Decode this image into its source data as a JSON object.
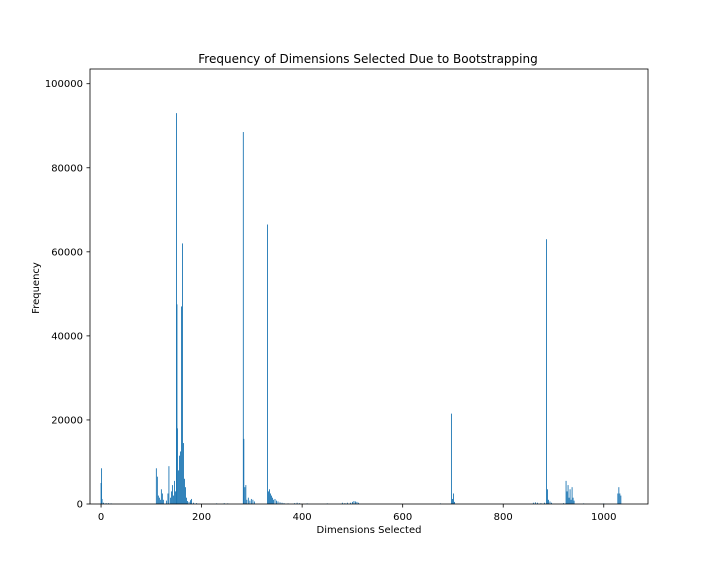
{
  "chart_data": {
    "type": "bar",
    "title": "Frequency of Dimensions Selected Due to Bootstrapping",
    "xlabel": "Dimensions Selected",
    "ylabel": "Frequency",
    "xlim": [
      -22,
      1088
    ],
    "ylim": [
      0,
      103500
    ],
    "xticks": [
      0,
      200,
      400,
      600,
      800,
      1000
    ],
    "yticks": [
      0,
      20000,
      40000,
      60000,
      80000,
      100000
    ],
    "grid": false,
    "legend": "none",
    "bar_color": "#1f77b4",
    "bars": [
      {
        "x": 0,
        "y": 5000
      },
      {
        "x": 1,
        "y": 8500
      },
      {
        "x": 2,
        "y": 1200
      },
      {
        "x": 5,
        "y": 300
      },
      {
        "x": 10,
        "y": 200
      },
      {
        "x": 15,
        "y": 200
      },
      {
        "x": 20,
        "y": 150
      },
      {
        "x": 110,
        "y": 8500
      },
      {
        "x": 112,
        "y": 6500
      },
      {
        "x": 114,
        "y": 2000
      },
      {
        "x": 116,
        "y": 1500
      },
      {
        "x": 118,
        "y": 1000
      },
      {
        "x": 120,
        "y": 3500
      },
      {
        "x": 122,
        "y": 2500
      },
      {
        "x": 124,
        "y": 1000
      },
      {
        "x": 130,
        "y": 800
      },
      {
        "x": 133,
        "y": 2500
      },
      {
        "x": 135,
        "y": 9000
      },
      {
        "x": 138,
        "y": 1500
      },
      {
        "x": 140,
        "y": 3000
      },
      {
        "x": 142,
        "y": 4500
      },
      {
        "x": 144,
        "y": 2000
      },
      {
        "x": 146,
        "y": 5500
      },
      {
        "x": 148,
        "y": 3000
      },
      {
        "x": 150,
        "y": 93000
      },
      {
        "x": 151,
        "y": 47500
      },
      {
        "x": 152,
        "y": 18000
      },
      {
        "x": 154,
        "y": 8000
      },
      {
        "x": 156,
        "y": 11500
      },
      {
        "x": 158,
        "y": 12500
      },
      {
        "x": 160,
        "y": 47000
      },
      {
        "x": 162,
        "y": 62000
      },
      {
        "x": 164,
        "y": 14500
      },
      {
        "x": 166,
        "y": 6000
      },
      {
        "x": 168,
        "y": 4000
      },
      {
        "x": 170,
        "y": 1500
      },
      {
        "x": 172,
        "y": 700
      },
      {
        "x": 175,
        "y": 500
      },
      {
        "x": 178,
        "y": 900
      },
      {
        "x": 180,
        "y": 1200
      },
      {
        "x": 184,
        "y": 300
      },
      {
        "x": 190,
        "y": 200
      },
      {
        "x": 230,
        "y": 150
      },
      {
        "x": 245,
        "y": 200
      },
      {
        "x": 252,
        "y": 150
      },
      {
        "x": 283,
        "y": 88500
      },
      {
        "x": 284,
        "y": 15500
      },
      {
        "x": 286,
        "y": 4000
      },
      {
        "x": 288,
        "y": 4500
      },
      {
        "x": 290,
        "y": 1000
      },
      {
        "x": 293,
        "y": 1500
      },
      {
        "x": 296,
        "y": 800
      },
      {
        "x": 299,
        "y": 1200
      },
      {
        "x": 302,
        "y": 1000
      },
      {
        "x": 305,
        "y": 600
      },
      {
        "x": 331,
        "y": 66500
      },
      {
        "x": 333,
        "y": 3000
      },
      {
        "x": 335,
        "y": 3500
      },
      {
        "x": 337,
        "y": 2500
      },
      {
        "x": 339,
        "y": 2000
      },
      {
        "x": 341,
        "y": 1500
      },
      {
        "x": 343,
        "y": 1000
      },
      {
        "x": 346,
        "y": 1200
      },
      {
        "x": 349,
        "y": 800
      },
      {
        "x": 352,
        "y": 600
      },
      {
        "x": 356,
        "y": 400
      },
      {
        "x": 360,
        "y": 300
      },
      {
        "x": 364,
        "y": 200
      },
      {
        "x": 372,
        "y": 150
      },
      {
        "x": 385,
        "y": 200
      },
      {
        "x": 390,
        "y": 300
      },
      {
        "x": 395,
        "y": 200
      },
      {
        "x": 410,
        "y": 150
      },
      {
        "x": 450,
        "y": 150
      },
      {
        "x": 480,
        "y": 300
      },
      {
        "x": 485,
        "y": 200
      },
      {
        "x": 490,
        "y": 300
      },
      {
        "x": 496,
        "y": 300
      },
      {
        "x": 500,
        "y": 500
      },
      {
        "x": 503,
        "y": 700
      },
      {
        "x": 506,
        "y": 600
      },
      {
        "x": 509,
        "y": 500
      },
      {
        "x": 512,
        "y": 300
      },
      {
        "x": 675,
        "y": 150
      },
      {
        "x": 697,
        "y": 21500
      },
      {
        "x": 699,
        "y": 1200
      },
      {
        "x": 701,
        "y": 2500
      },
      {
        "x": 703,
        "y": 500
      },
      {
        "x": 860,
        "y": 300
      },
      {
        "x": 864,
        "y": 400
      },
      {
        "x": 868,
        "y": 300
      },
      {
        "x": 875,
        "y": 200
      },
      {
        "x": 882,
        "y": 300
      },
      {
        "x": 886,
        "y": 63000
      },
      {
        "x": 888,
        "y": 3500
      },
      {
        "x": 890,
        "y": 1000
      },
      {
        "x": 893,
        "y": 600
      },
      {
        "x": 896,
        "y": 300
      },
      {
        "x": 920,
        "y": 200
      },
      {
        "x": 925,
        "y": 5500
      },
      {
        "x": 927,
        "y": 3000
      },
      {
        "x": 929,
        "y": 4500
      },
      {
        "x": 931,
        "y": 1500
      },
      {
        "x": 933,
        "y": 3500
      },
      {
        "x": 935,
        "y": 1000
      },
      {
        "x": 937,
        "y": 4000
      },
      {
        "x": 939,
        "y": 1500
      },
      {
        "x": 941,
        "y": 800
      },
      {
        "x": 960,
        "y": 150
      },
      {
        "x": 1000,
        "y": 150
      },
      {
        "x": 1028,
        "y": 2500
      },
      {
        "x": 1030,
        "y": 4000
      },
      {
        "x": 1032,
        "y": 2500
      },
      {
        "x": 1034,
        "y": 2000
      }
    ]
  }
}
